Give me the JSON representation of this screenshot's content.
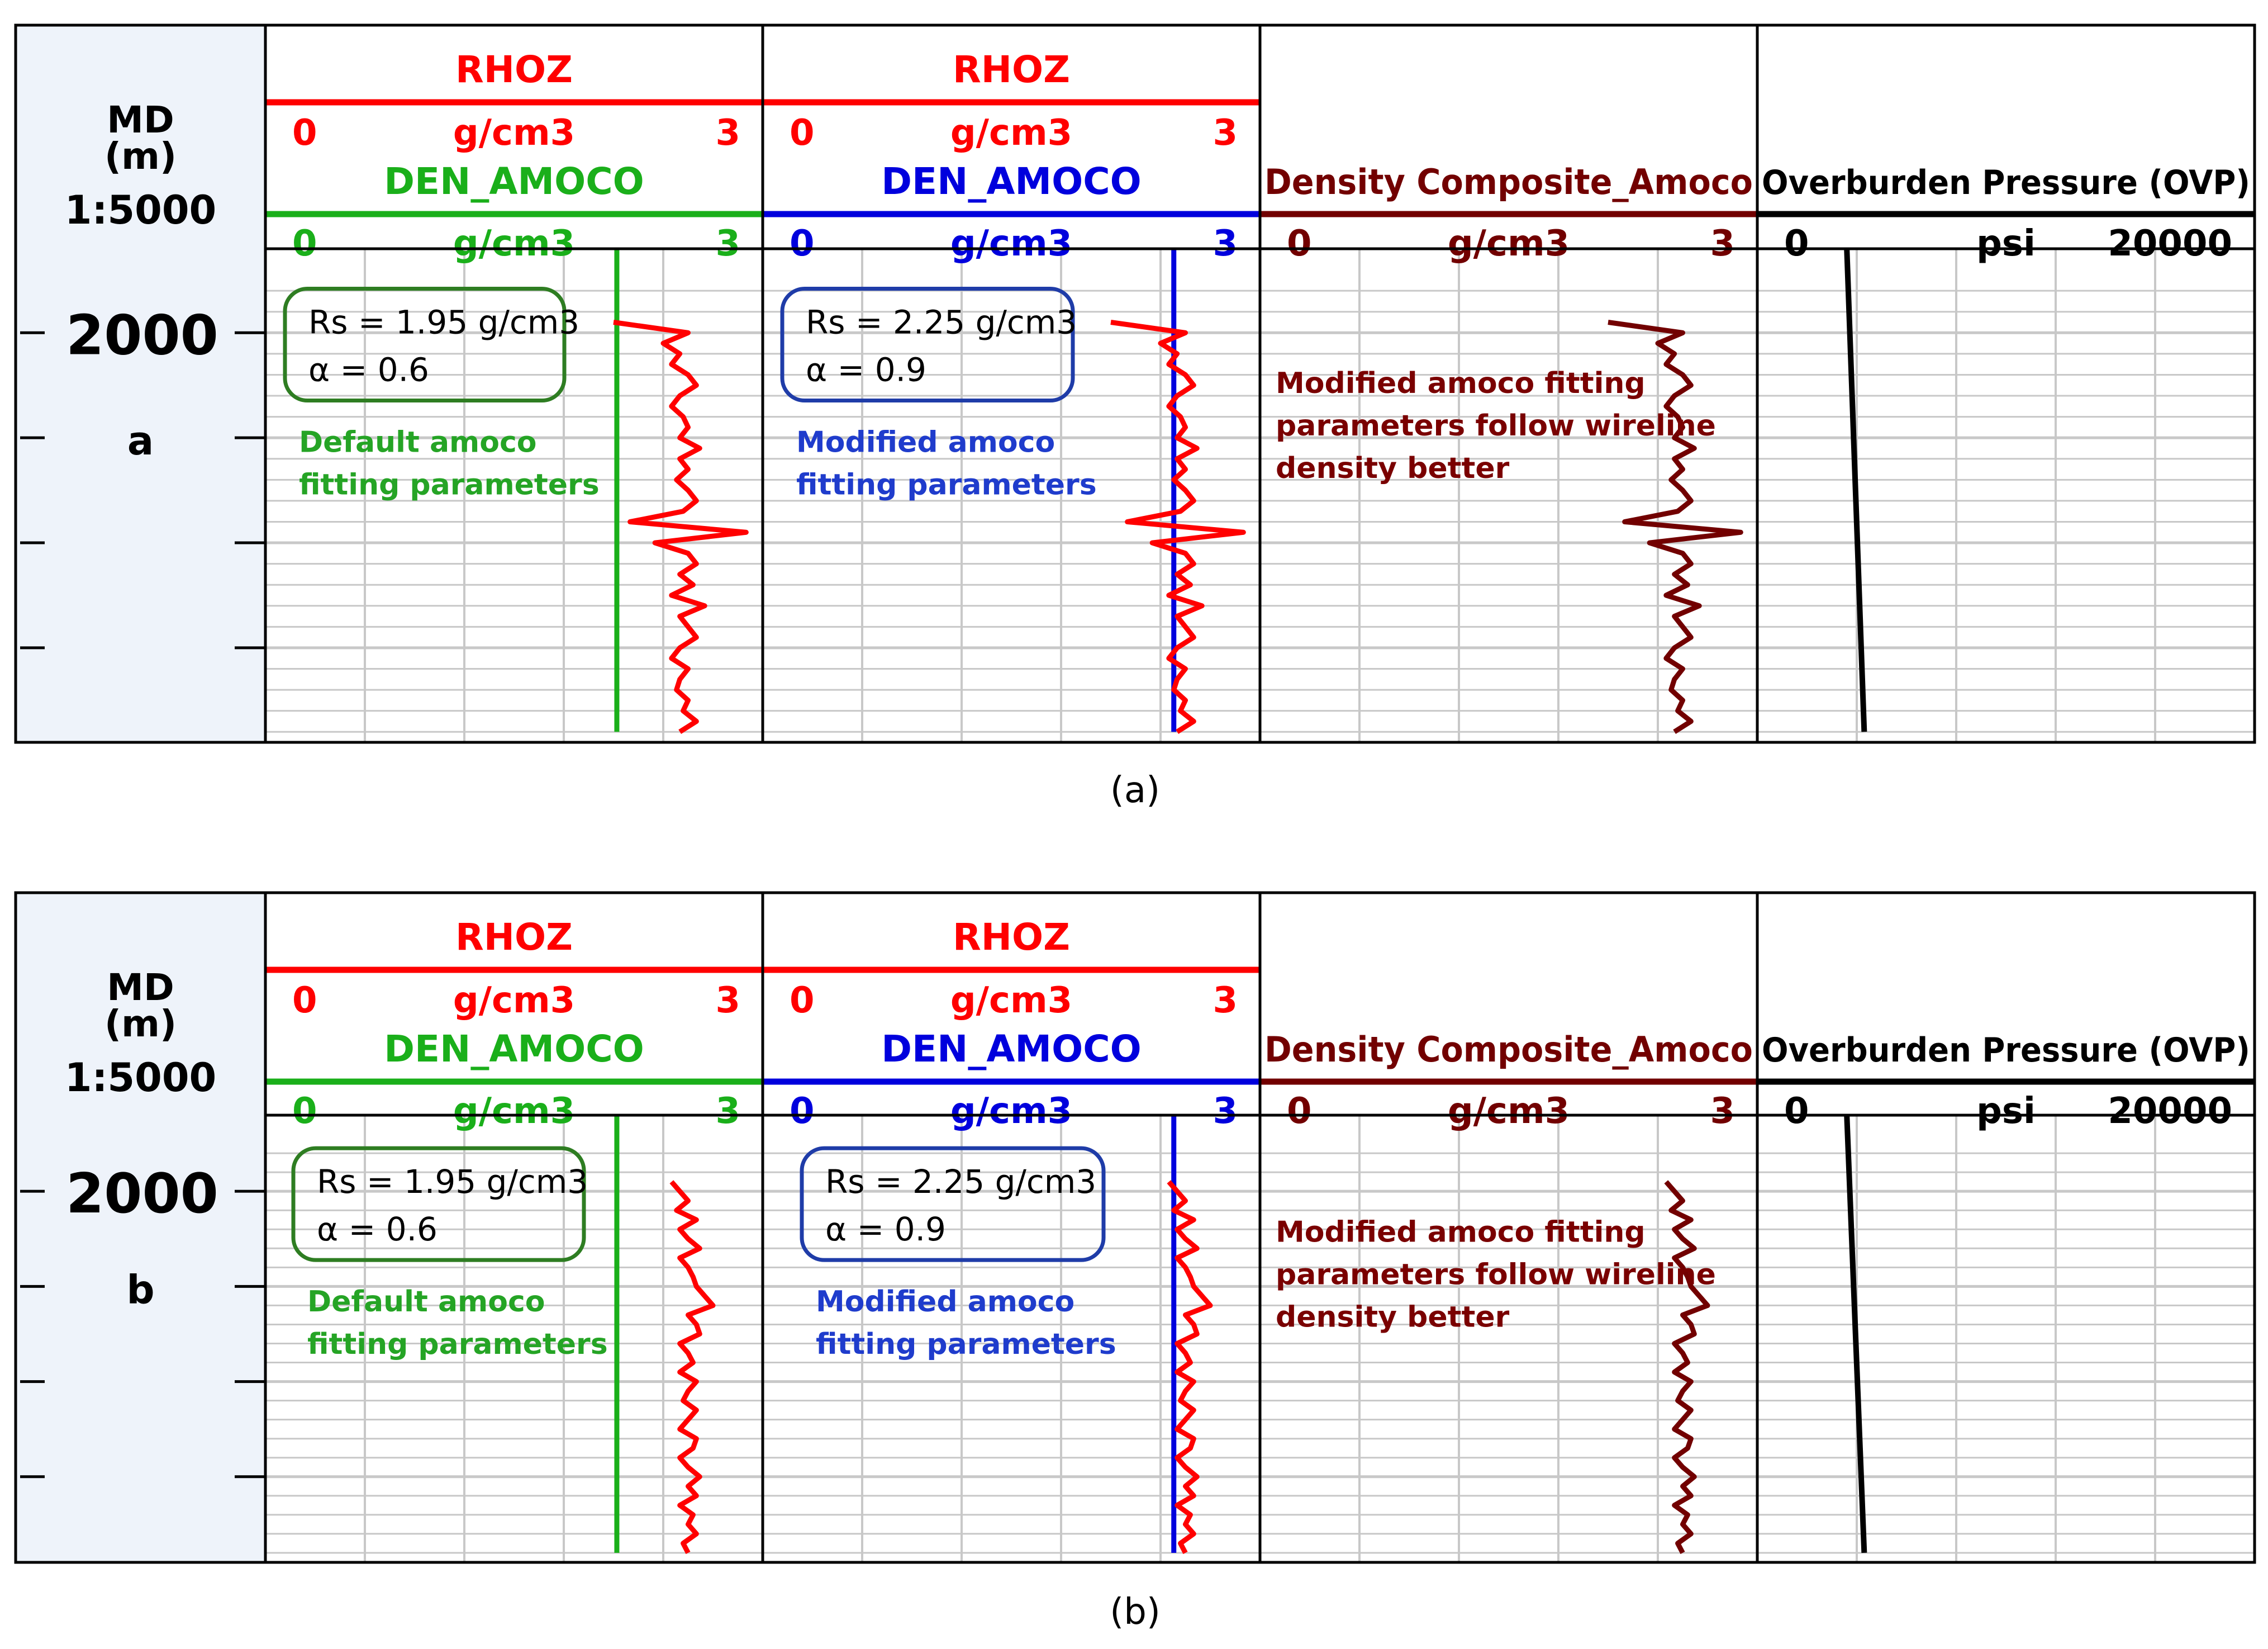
{
  "colors": {
    "rhoz": "#ff0000",
    "den_default": "#1aaf1a",
    "den_modified": "#0000dd",
    "composite": "#720000",
    "ovp": "#000000",
    "depth_panel": "#eef3fa",
    "grid": "#c8c8c8",
    "box_green": "#2e7d22",
    "box_blue": "#1f3ca8",
    "note_green": "#25a425",
    "note_blue": "#1f3ccc",
    "note_red": "#7a0000"
  },
  "chart_data": [
    {
      "type": "line",
      "panel_caption": "(a)",
      "depth_track": {
        "title": "MD",
        "unit": "(m)",
        "scale": "1:5000",
        "depth_label": "2000",
        "panel_letter": "a"
      },
      "tracks": [
        {
          "curves": [
            {
              "name": "RHOZ",
              "unit": "g/cm3",
              "min": "0",
              "max": "3",
              "color_key": "rhoz"
            },
            {
              "name": "DEN_AMOCO",
              "unit": "g/cm3",
              "min": "0",
              "max": "3",
              "color_key": "den_default"
            }
          ],
          "box_lines": [
            "Rs = 1.95 g/cm3",
            "α = 0.6"
          ],
          "notes": [
            "Default amoco",
            "fitting parameters"
          ]
        },
        {
          "curves": [
            {
              "name": "RHOZ",
              "unit": "g/cm3",
              "min": "0",
              "max": "3",
              "color_key": "rhoz"
            },
            {
              "name": "DEN_AMOCO",
              "unit": "g/cm3",
              "min": "0",
              "max": "3",
              "color_key": "den_modified"
            }
          ],
          "box_lines": [
            "Rs = 2.25 g/cm3",
            "α = 0.9"
          ],
          "notes": [
            "Modified amoco",
            "fitting parameters"
          ]
        },
        {
          "curves": [
            {
              "name": "Density Composite_Amoco",
              "unit": "g/cm3",
              "min": "0",
              "max": "3",
              "color_key": "composite"
            }
          ],
          "notes": [
            "Modified amoco fitting",
            "parameters follow wireline",
            "density better"
          ]
        },
        {
          "curves": [
            {
              "name": "Overburden Pressure (OVP)",
              "unit": "psi",
              "min": "0",
              "max": "20000",
              "color_key": "ovp"
            }
          ]
        }
      ],
      "series": {
        "rhoz": {
          "depth_m": [
            1995,
            2000,
            2005,
            2010,
            2015,
            2020,
            2025,
            2030,
            2035,
            2040,
            2045,
            2050,
            2055,
            2060,
            2065,
            2070,
            2075,
            2080,
            2085,
            2090,
            2095,
            2100,
            2105,
            2110,
            2115,
            2120,
            2125,
            2130,
            2135,
            2140,
            2145,
            2150,
            2155,
            2160,
            2165,
            2170,
            2175,
            2180,
            2185,
            2190
          ],
          "value": [
            2.1,
            2.55,
            2.4,
            2.5,
            2.45,
            2.55,
            2.6,
            2.5,
            2.45,
            2.52,
            2.55,
            2.5,
            2.62,
            2.5,
            2.55,
            2.48,
            2.55,
            2.6,
            2.52,
            2.2,
            2.9,
            2.35,
            2.55,
            2.6,
            2.5,
            2.58,
            2.45,
            2.65,
            2.5,
            2.55,
            2.6,
            2.5,
            2.45,
            2.55,
            2.5,
            2.48,
            2.55,
            2.52,
            2.6,
            2.5
          ]
        },
        "den_default_g_cm3": {
          "depth_m": [
            1960,
            2190
          ],
          "value": [
            2.12,
            2.12
          ]
        },
        "den_modified_g_cm3": {
          "depth_m": [
            1960,
            2190
          ],
          "value": [
            2.48,
            2.48
          ]
        },
        "composite_g_cm3": {
          "depth_m": [
            1995,
            2000,
            2005,
            2010,
            2015,
            2020,
            2025,
            2030,
            2035,
            2040,
            2045,
            2050,
            2055,
            2060,
            2065,
            2070,
            2075,
            2080,
            2085,
            2090,
            2095,
            2100,
            2105,
            2110,
            2115,
            2120,
            2125,
            2130,
            2135,
            2140,
            2145,
            2150,
            2155,
            2160,
            2165,
            2170,
            2175,
            2180,
            2185,
            2190
          ],
          "value": [
            2.1,
            2.55,
            2.4,
            2.5,
            2.45,
            2.55,
            2.6,
            2.5,
            2.45,
            2.52,
            2.55,
            2.5,
            2.62,
            2.5,
            2.55,
            2.48,
            2.55,
            2.6,
            2.52,
            2.2,
            2.9,
            2.35,
            2.55,
            2.6,
            2.5,
            2.58,
            2.45,
            2.65,
            2.5,
            2.55,
            2.6,
            2.5,
            2.45,
            2.55,
            2.5,
            2.48,
            2.55,
            2.52,
            2.6,
            2.5
          ]
        },
        "ovp_psi": {
          "depth_m": [
            1960,
            2190
          ],
          "value": [
            3600,
            4300
          ]
        }
      }
    },
    {
      "type": "line",
      "panel_caption": "(b)",
      "depth_track": {
        "title": "MD",
        "unit": "(m)",
        "scale": "1:5000",
        "depth_label": "2000",
        "panel_letter": "b"
      },
      "tracks": [
        {
          "curves": [
            {
              "name": "RHOZ",
              "unit": "g/cm3",
              "min": "0",
              "max": "3",
              "color_key": "rhoz"
            },
            {
              "name": "DEN_AMOCO",
              "unit": "g/cm3",
              "min": "0",
              "max": "3",
              "color_key": "den_default"
            }
          ],
          "box_lines": [
            "Rs = 1.95 g/cm3",
            "α = 0.6"
          ],
          "notes": [
            "Default amoco",
            "fitting parameters"
          ]
        },
        {
          "curves": [
            {
              "name": "RHOZ",
              "unit": "g/cm3",
              "min": "0",
              "max": "3",
              "color_key": "rhoz"
            },
            {
              "name": "DEN_AMOCO",
              "unit": "g/cm3",
              "min": "0",
              "max": "3",
              "color_key": "den_modified"
            }
          ],
          "box_lines": [
            "Rs = 2.25 g/cm3",
            "α = 0.9"
          ],
          "notes": [
            "Modified amoco",
            "fitting parameters"
          ]
        },
        {
          "curves": [
            {
              "name": "Density Composite_Amoco",
              "unit": "g/cm3",
              "min": "0",
              "max": "3",
              "color_key": "composite"
            }
          ],
          "notes": [
            "Modified amoco fitting",
            "parameters follow wireline",
            "density better"
          ]
        },
        {
          "curves": [
            {
              "name": "Overburden Pressure (OVP)",
              "unit": "psi",
              "min": "0",
              "max": "20000",
              "color_key": "ovp"
            }
          ]
        }
      ],
      "series": {
        "rhoz": {
          "depth_m": [
            1995,
            2000,
            2005,
            2010,
            2015,
            2020,
            2025,
            2030,
            2035,
            2040,
            2045,
            2050,
            2055,
            2060,
            2065,
            2070,
            2075,
            2080,
            2085,
            2090,
            2095,
            2100,
            2105,
            2110,
            2115,
            2120,
            2125,
            2130,
            2135,
            2140,
            2145,
            2150,
            2155,
            2160,
            2165,
            2170,
            2175,
            2180,
            2185,
            2190
          ],
          "value": [
            2.45,
            2.5,
            2.55,
            2.48,
            2.6,
            2.5,
            2.55,
            2.62,
            2.5,
            2.55,
            2.58,
            2.6,
            2.65,
            2.7,
            2.55,
            2.6,
            2.62,
            2.5,
            2.55,
            2.58,
            2.5,
            2.6,
            2.55,
            2.52,
            2.6,
            2.55,
            2.5,
            2.6,
            2.58,
            2.5,
            2.55,
            2.62,
            2.55,
            2.6,
            2.5,
            2.58,
            2.55,
            2.6,
            2.52,
            2.55
          ]
        },
        "den_default_g_cm3": {
          "depth_m": [
            1960,
            2190
          ],
          "value": [
            2.12,
            2.12
          ]
        },
        "den_modified_g_cm3": {
          "depth_m": [
            1960,
            2190
          ],
          "value": [
            2.48,
            2.48
          ]
        },
        "composite_g_cm3": {
          "depth_m": [
            1995,
            2000,
            2005,
            2010,
            2015,
            2020,
            2025,
            2030,
            2035,
            2040,
            2045,
            2050,
            2055,
            2060,
            2065,
            2070,
            2075,
            2080,
            2085,
            2090,
            2095,
            2100,
            2105,
            2110,
            2115,
            2120,
            2125,
            2130,
            2135,
            2140,
            2145,
            2150,
            2155,
            2160,
            2165,
            2170,
            2175,
            2180,
            2185,
            2190
          ],
          "value": [
            2.45,
            2.5,
            2.55,
            2.48,
            2.6,
            2.5,
            2.55,
            2.62,
            2.5,
            2.55,
            2.58,
            2.6,
            2.65,
            2.7,
            2.55,
            2.6,
            2.62,
            2.5,
            2.55,
            2.58,
            2.5,
            2.6,
            2.55,
            2.52,
            2.6,
            2.55,
            2.5,
            2.6,
            2.58,
            2.5,
            2.55,
            2.62,
            2.55,
            2.6,
            2.5,
            2.58,
            2.55,
            2.6,
            2.52,
            2.55
          ]
        },
        "ovp_psi": {
          "depth_m": [
            1960,
            2190
          ],
          "value": [
            3600,
            4300
          ]
        }
      }
    }
  ]
}
